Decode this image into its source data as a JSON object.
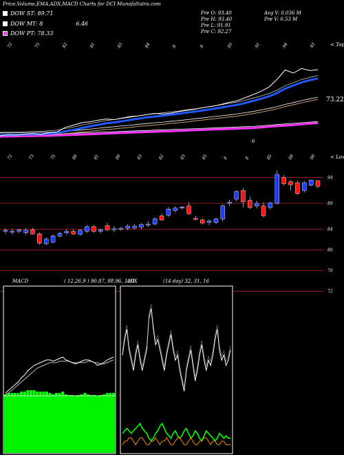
{
  "header": {
    "title": "Price,Volume,EMA,ADX,MACD Charts for DCI MunafaSutra.com"
  },
  "legend": [
    {
      "label": "DOW ST: 89.71",
      "value": "",
      "color": "#ffffff"
    },
    {
      "label": "DOW MT: 8",
      "value": "6.46",
      "color": "#ffffff"
    },
    {
      "label": "DOW PT: 78.33",
      "value": "",
      "color": "#ff33ff"
    }
  ],
  "info": {
    "prev_open": "Pre   O: 93.40",
    "prev_high": "Pre   H: 93.40",
    "prev_low": "Pre   L: 91.91",
    "prev_close": "Pre   C: 92.27",
    "avg_volume": "Avg V: 0.036   M",
    "prev_volume": "Pre   V: 0.53 M"
  },
  "colors": {
    "up": "#1e3cff",
    "down": "#ff1010",
    "grid": "#8b1a1a",
    "ema_blue": "#1e5aff",
    "pink": "#ff33ff",
    "macd_fill": "#00ff00",
    "adx_green": "#00ff00",
    "adx_orange": "#ff8c00"
  },
  "chart_data": [
    {
      "type": "line",
      "panel": "ema",
      "right_label": "< Tops",
      "last_value_label": "73.22",
      "inner_label": "6",
      "top_tick_labels": [
        "72",
        "75",
        "82",
        "81",
        "83",
        "84",
        "8",
        "8",
        "85",
        "91",
        "94",
        "93"
      ],
      "bottom_tick_labels": [
        "72",
        "73",
        "75",
        "80",
        "81",
        "80",
        "83",
        "82",
        "83",
        "85",
        "8",
        "8",
        "85",
        "88",
        "90"
      ],
      "price": [
        71.8,
        72.1,
        72.0,
        72.3,
        72.5,
        72.2,
        72.8,
        73.0,
        74.5,
        75.2,
        76.0,
        76.3,
        76.8,
        77.2,
        77.0,
        77.5,
        78.0,
        78.2,
        78.6,
        79.0,
        78.8,
        79.1,
        79.6,
        80.0,
        80.4,
        80.9,
        81.3,
        81.8,
        82.5,
        83.0,
        84.0,
        85.0,
        86.1,
        87.5,
        90.0,
        93.0,
        92.0,
        93.5,
        92.8,
        93.1
      ],
      "ema_fast": [
        72.0,
        72.1,
        72.1,
        72.2,
        72.3,
        72.3,
        72.5,
        72.7,
        73.2,
        73.7,
        74.3,
        74.8,
        75.3,
        75.8,
        76.1,
        76.5,
        76.9,
        77.3,
        77.7,
        78.0,
        78.3,
        78.6,
        78.9,
        79.3,
        79.6,
        80.0,
        80.4,
        80.8,
        81.3,
        81.7,
        82.3,
        83.0,
        83.7,
        84.5,
        85.6,
        87.0,
        88.0,
        89.0,
        89.7,
        90.3
      ],
      "ema_slow": [
        72.0,
        72.0,
        72.0,
        72.1,
        72.1,
        72.2,
        72.2,
        72.3,
        72.5,
        72.7,
        73.0,
        73.2,
        73.5,
        73.8,
        74.0,
        74.3,
        74.5,
        74.8,
        75.0,
        75.3,
        75.5,
        75.8,
        76.0,
        76.3,
        76.6,
        76.9,
        77.2,
        77.5,
        77.8,
        78.1,
        78.5,
        78.9,
        79.4,
        79.9,
        80.5,
        81.2,
        81.8,
        82.4,
        83.0,
        83.5
      ],
      "ema_long": [
        71.5,
        71.6,
        71.6,
        71.7,
        71.7,
        71.8,
        71.8,
        71.9,
        72.0,
        72.1,
        72.2,
        72.3,
        72.4,
        72.5,
        72.6,
        72.7,
        72.8,
        72.9,
        73.0,
        73.1,
        73.2,
        73.3,
        73.4,
        73.5,
        73.6,
        73.7,
        73.8,
        73.9,
        74.0,
        74.1,
        74.2,
        74.3,
        74.5,
        74.7,
        74.9,
        75.1,
        75.3,
        75.5,
        75.7,
        75.9
      ],
      "ylim": [
        70,
        100
      ]
    },
    {
      "type": "candlestick",
      "panel": "price",
      "right_label": "< Lows",
      "top_tick_labels": [
        "72",
        "73",
        "75",
        "80",
        "81",
        "80",
        "83",
        "82",
        "83",
        "85",
        "8",
        "8",
        "85",
        "88",
        "90"
      ],
      "y_tick_labels": [
        "94",
        "89",
        "84",
        "80",
        "76",
        "72"
      ],
      "y_ticks": [
        94,
        89,
        84,
        80,
        76,
        72
      ],
      "ylim": [
        69,
        97
      ],
      "candles": [
        {
          "o": 83.6,
          "h": 84.2,
          "l": 83.1,
          "c": 83.8
        },
        {
          "o": 83.5,
          "h": 84.1,
          "l": 83.0,
          "c": 83.6
        },
        {
          "o": 83.6,
          "h": 84.0,
          "l": 83.2,
          "c": 83.9
        },
        {
          "o": 83.3,
          "h": 84.2,
          "l": 82.9,
          "c": 83.8
        },
        {
          "o": 83.9,
          "h": 84.3,
          "l": 83.0,
          "c": 83.1
        },
        {
          "o": 83.1,
          "h": 83.4,
          "l": 81.0,
          "c": 81.3
        },
        {
          "o": 81.2,
          "h": 82.4,
          "l": 80.8,
          "c": 82.1
        },
        {
          "o": 81.5,
          "h": 83.0,
          "l": 81.3,
          "c": 82.7
        },
        {
          "o": 82.7,
          "h": 83.5,
          "l": 82.4,
          "c": 83.2
        },
        {
          "o": 83.3,
          "h": 84.0,
          "l": 82.9,
          "c": 83.6
        },
        {
          "o": 83.6,
          "h": 84.0,
          "l": 82.9,
          "c": 83.1
        },
        {
          "o": 83.0,
          "h": 84.0,
          "l": 82.8,
          "c": 83.8
        },
        {
          "o": 83.6,
          "h": 84.8,
          "l": 83.3,
          "c": 84.5
        },
        {
          "o": 84.5,
          "h": 84.8,
          "l": 83.3,
          "c": 83.6
        },
        {
          "o": 83.6,
          "h": 84.1,
          "l": 83.2,
          "c": 83.9
        },
        {
          "o": 84.7,
          "h": 85.2,
          "l": 83.7,
          "c": 83.9
        },
        {
          "o": 84.0,
          "h": 84.6,
          "l": 83.4,
          "c": 84.1
        },
        {
          "o": 84.0,
          "h": 84.4,
          "l": 83.7,
          "c": 84.2
        },
        {
          "o": 84.2,
          "h": 85.0,
          "l": 83.8,
          "c": 84.6
        },
        {
          "o": 84.2,
          "h": 85.0,
          "l": 84.0,
          "c": 84.6
        },
        {
          "o": 84.4,
          "h": 85.2,
          "l": 84.0,
          "c": 84.9
        },
        {
          "o": 84.8,
          "h": 85.6,
          "l": 84.4,
          "c": 85.0
        },
        {
          "o": 85.0,
          "h": 86.3,
          "l": 84.8,
          "c": 86.0
        },
        {
          "o": 86.6,
          "h": 87.1,
          "l": 85.6,
          "c": 85.8
        },
        {
          "o": 86.7,
          "h": 88.3,
          "l": 86.4,
          "c": 87.9
        },
        {
          "o": 87.6,
          "h": 88.4,
          "l": 87.3,
          "c": 88.1
        },
        {
          "o": 88.2,
          "h": 88.5,
          "l": 87.8,
          "c": 88.3
        },
        {
          "o": 88.5,
          "h": 89.2,
          "l": 86.8,
          "c": 87.0
        },
        {
          "o": 86.1,
          "h": 86.6,
          "l": 85.7,
          "c": 85.9
        },
        {
          "o": 85.8,
          "h": 86.1,
          "l": 84.9,
          "c": 85.2
        },
        {
          "o": 85.3,
          "h": 85.9,
          "l": 84.8,
          "c": 85.6
        },
        {
          "o": 85.3,
          "h": 86.2,
          "l": 85.0,
          "c": 86.0
        },
        {
          "o": 86.0,
          "h": 88.8,
          "l": 85.5,
          "c": 88.5
        },
        {
          "o": 89.0,
          "h": 89.7,
          "l": 88.5,
          "c": 89.2
        },
        {
          "o": 89.8,
          "h": 91.5,
          "l": 89.4,
          "c": 91.3
        },
        {
          "o": 91.5,
          "h": 92.0,
          "l": 88.2,
          "c": 89.3
        },
        {
          "o": 89.6,
          "h": 90.3,
          "l": 87.9,
          "c": 88.2
        },
        {
          "o": 88.5,
          "h": 89.5,
          "l": 88.0,
          "c": 89.0
        },
        {
          "o": 88.5,
          "h": 89.2,
          "l": 86.3,
          "c": 86.6
        },
        {
          "o": 88.2,
          "h": 89.3,
          "l": 87.8,
          "c": 89.1
        },
        {
          "o": 89.0,
          "h": 95.4,
          "l": 88.8,
          "c": 94.6
        },
        {
          "o": 94.0,
          "h": 94.5,
          "l": 92.5,
          "c": 92.8
        },
        {
          "o": 93.2,
          "h": 93.5,
          "l": 91.5,
          "c": 92.6
        },
        {
          "o": 93.0,
          "h": 93.4,
          "l": 90.6,
          "c": 90.9
        },
        {
          "o": 91.5,
          "h": 93.3,
          "l": 91.1,
          "c": 93.0
        },
        {
          "o": 92.5,
          "h": 93.6,
          "l": 92.3,
          "c": 93.5
        },
        {
          "o": 93.4,
          "h": 93.4,
          "l": 91.9,
          "c": 92.3
        }
      ]
    },
    {
      "type": "line",
      "panel": "macd",
      "label": "MACD",
      "params": "( 12,26,9 ) 90.87, 88.96, 1.91",
      "macd": [
        0.2,
        0.4,
        0.6,
        0.8,
        1.0,
        1.3,
        1.5,
        1.8,
        2.0,
        2.2,
        2.3,
        2.4,
        2.5,
        2.6,
        2.6,
        2.5,
        2.6,
        2.7,
        2.8,
        2.6,
        2.5,
        2.4,
        2.3,
        2.4,
        2.5,
        2.6,
        2.6,
        2.5,
        2.4,
        2.2,
        2.3,
        2.4,
        2.6,
        2.7,
        2.8
      ],
      "signal": [
        0.1,
        0.2,
        0.4,
        0.6,
        0.8,
        1.0,
        1.2,
        1.4,
        1.6,
        1.8,
        2.0,
        2.1,
        2.2,
        2.3,
        2.4,
        2.4,
        2.4,
        2.5,
        2.5,
        2.5,
        2.5,
        2.4,
        2.4,
        2.4,
        2.4,
        2.4,
        2.5,
        2.5,
        2.4,
        2.4,
        2.3,
        2.3,
        2.4,
        2.5,
        2.6
      ],
      "histogram": [
        0.1,
        0.2,
        0.2,
        0.2,
        0.2,
        0.3,
        0.3,
        0.4,
        0.4,
        0.4,
        0.3,
        0.3,
        0.3,
        0.3,
        0.2,
        0.1,
        0.2,
        0.2,
        0.3,
        0.1,
        0.0,
        0.0,
        -0.1,
        0.0,
        0.1,
        0.2,
        0.1,
        0.0,
        0.0,
        -0.2,
        0.0,
        0.1,
        0.2,
        0.2,
        0.2
      ]
    },
    {
      "type": "line",
      "panel": "adx",
      "label": "ADX",
      "params": "(14 day) 32, 31, 16",
      "plus_di": [
        25,
        28,
        30,
        26,
        24,
        22,
        25,
        27,
        24,
        22,
        24,
        26,
        32,
        34,
        30,
        27,
        28,
        26,
        24,
        22,
        25,
        27,
        29,
        26,
        24,
        25,
        22,
        20,
        18,
        22,
        24,
        26,
        23,
        20,
        22,
        25,
        27,
        24,
        22,
        24,
        23,
        25,
        28,
        30,
        26,
        24,
        25,
        23,
        24,
        26
      ],
      "minus_di": [
        14,
        15,
        16,
        15,
        14,
        15,
        16,
        17,
        18,
        16,
        15,
        14,
        12,
        11,
        12,
        14,
        15,
        17,
        18,
        16,
        14,
        13,
        12,
        14,
        15,
        13,
        12,
        13,
        15,
        16,
        14,
        12,
        13,
        15,
        14,
        12,
        11,
        13,
        15,
        14,
        13,
        12,
        11,
        12,
        14,
        13,
        12,
        13,
        12,
        12
      ],
      "adx": [
        8,
        9,
        9,
        10,
        10,
        9,
        8,
        9,
        10,
        10,
        9,
        8,
        8,
        9,
        9,
        10,
        9,
        8,
        9,
        9,
        10,
        9,
        8,
        8,
        9,
        10,
        10,
        9,
        8,
        8,
        9,
        10,
        9,
        8,
        8,
        9,
        9,
        10,
        10,
        9,
        8,
        9,
        9,
        8,
        8,
        9,
        9,
        8,
        8,
        8
      ]
    }
  ]
}
